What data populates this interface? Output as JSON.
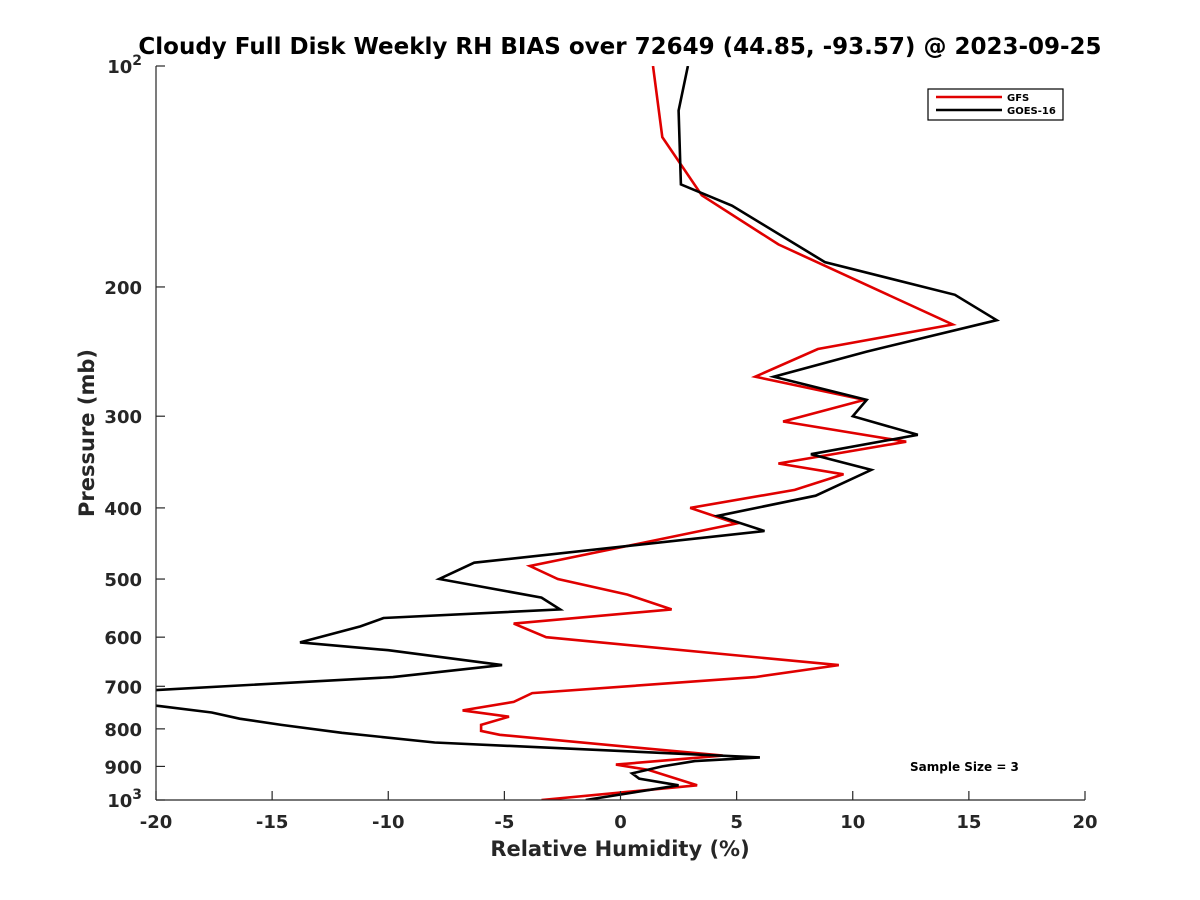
{
  "chart_data": {
    "type": "line",
    "title": "Cloudy Full Disk Weekly RH BIAS over 72649 (44.85, -93.57) @ 2023-09-25",
    "xlabel": "Relative Humidity (%)",
    "ylabel": "Pressure (mb)",
    "xlim": [
      -20,
      20
    ],
    "ylim": [
      100,
      1000
    ],
    "y_scale": "log",
    "y_reversed": true,
    "x_ticks": [
      "-20",
      "-15",
      "-10",
      "-5",
      "0",
      "5",
      "10",
      "15",
      "20"
    ],
    "y_ticks": [
      {
        "value": 100,
        "base": "10",
        "exp": "2"
      },
      {
        "value": 200,
        "label": "200"
      },
      {
        "value": 300,
        "label": "300"
      },
      {
        "value": 400,
        "label": "400"
      },
      {
        "value": 500,
        "label": "500"
      },
      {
        "value": 600,
        "label": "600"
      },
      {
        "value": 700,
        "label": "700"
      },
      {
        "value": 800,
        "label": "800"
      },
      {
        "value": 900,
        "label": "900"
      },
      {
        "value": 1000,
        "base": "10",
        "exp": "3"
      }
    ],
    "grid": false,
    "legend_position": "top-right",
    "annotation": "Sample Size = 3",
    "series": [
      {
        "name": "GFS",
        "color": "#e00000",
        "points": [
          [
            1.4,
            100
          ],
          [
            1.8,
            125
          ],
          [
            3.5,
            150
          ],
          [
            6.8,
            175
          ],
          [
            14.3,
            225
          ],
          [
            8.5,
            243
          ],
          [
            5.8,
            265
          ],
          [
            10.5,
            285
          ],
          [
            7.0,
            305
          ],
          [
            12.3,
            325
          ],
          [
            6.8,
            348
          ],
          [
            9.6,
            360
          ],
          [
            7.5,
            378
          ],
          [
            3.0,
            400
          ],
          [
            5.0,
            420
          ],
          [
            -3.9,
            480
          ],
          [
            -2.7,
            500
          ],
          [
            0.3,
            525
          ],
          [
            2.2,
            550
          ],
          [
            -4.6,
            575
          ],
          [
            -3.2,
            600
          ],
          [
            9.4,
            655
          ],
          [
            5.8,
            680
          ],
          [
            -3.8,
            715
          ],
          [
            -4.6,
            735
          ],
          [
            -6.8,
            755
          ],
          [
            -4.8,
            770
          ],
          [
            -6.0,
            790
          ],
          [
            -6.0,
            805
          ],
          [
            -5.2,
            815
          ],
          [
            4.4,
            870
          ],
          [
            -0.2,
            895
          ],
          [
            1.2,
            910
          ],
          [
            3.3,
            955
          ],
          [
            -3.4,
            1000
          ]
        ]
      },
      {
        "name": "GOES-16",
        "color": "#000000",
        "points": [
          [
            2.9,
            100
          ],
          [
            2.5,
            115
          ],
          [
            2.6,
            145
          ],
          [
            4.8,
            155
          ],
          [
            8.8,
            185
          ],
          [
            14.4,
            205
          ],
          [
            16.2,
            222
          ],
          [
            10.6,
            245
          ],
          [
            6.6,
            265
          ],
          [
            10.6,
            285
          ],
          [
            10.0,
            300
          ],
          [
            12.8,
            318
          ],
          [
            8.2,
            338
          ],
          [
            10.8,
            355
          ],
          [
            8.4,
            385
          ],
          [
            4.2,
            410
          ],
          [
            6.2,
            430
          ],
          [
            -6.3,
            475
          ],
          [
            -7.8,
            500
          ],
          [
            -3.4,
            530
          ],
          [
            -2.6,
            550
          ],
          [
            -10.2,
            565
          ],
          [
            -11.2,
            580
          ],
          [
            -13.8,
            610
          ],
          [
            -10.0,
            625
          ],
          [
            -5.1,
            655
          ],
          [
            -9.8,
            680
          ],
          [
            -20.6,
            710
          ],
          [
            -20.6,
            740
          ],
          [
            -19.8,
            745
          ],
          [
            -17.6,
            760
          ],
          [
            -16.4,
            775
          ],
          [
            -14.6,
            790
          ],
          [
            -12.0,
            810
          ],
          [
            -8.0,
            835
          ],
          [
            6.0,
            875
          ],
          [
            3.2,
            885
          ],
          [
            1.8,
            900
          ],
          [
            0.5,
            920
          ],
          [
            0.8,
            935
          ],
          [
            2.5,
            955
          ],
          [
            -1.5,
            1000
          ]
        ]
      }
    ]
  }
}
